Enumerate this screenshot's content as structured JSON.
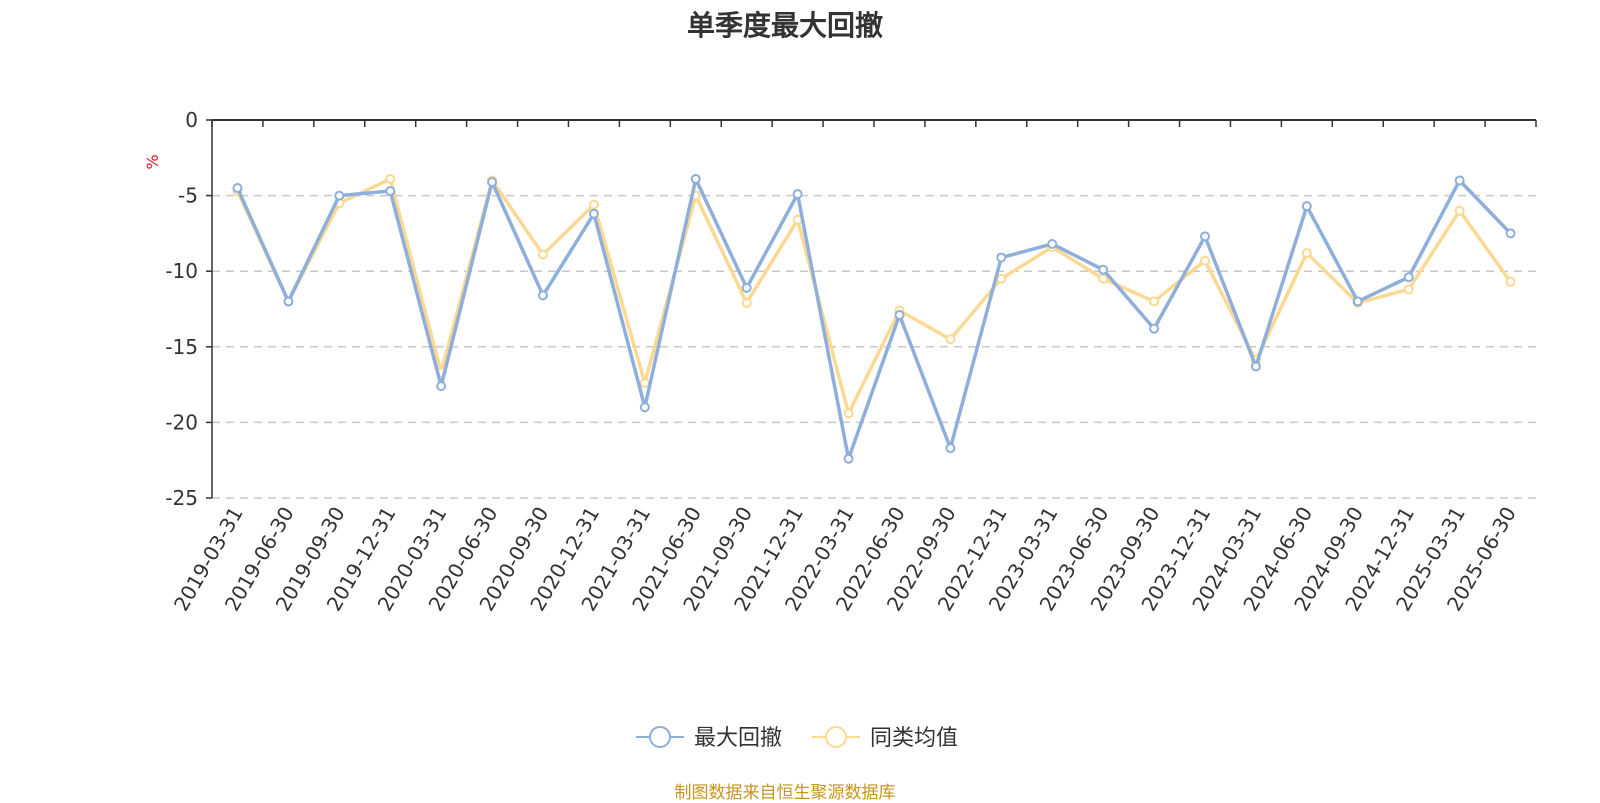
{
  "chart_data": {
    "type": "line",
    "title": "单季度最大回撤",
    "ylabel": "%",
    "ylim": [
      -25,
      0
    ],
    "yticks": [
      0,
      -5,
      -10,
      -15,
      -20,
      -25
    ],
    "grid": true,
    "legend_position": "bottom-center",
    "x": [
      "2019-03-31",
      "2019-06-30",
      "2019-09-30",
      "2019-12-31",
      "2020-03-31",
      "2020-06-30",
      "2020-09-30",
      "2020-12-31",
      "2021-03-31",
      "2021-06-30",
      "2021-09-30",
      "2021-12-31",
      "2022-03-31",
      "2022-06-30",
      "2022-09-30",
      "2022-12-31",
      "2023-03-31",
      "2023-06-30",
      "2023-09-30",
      "2023-12-31",
      "2024-03-31",
      "2024-06-30",
      "2024-09-30",
      "2024-12-31",
      "2025-03-31",
      "2025-06-30"
    ],
    "series": [
      {
        "name": "最大回撤",
        "color": "#8eaedb",
        "values": [
          -4.5,
          -12.0,
          -5.0,
          -4.7,
          -17.6,
          -4.1,
          -11.6,
          -6.2,
          -19.0,
          -3.9,
          -11.1,
          -4.9,
          -22.4,
          -12.9,
          -21.7,
          -9.1,
          -8.2,
          -9.9,
          -13.8,
          -7.7,
          -16.3,
          -5.7,
          -12.0,
          -10.4,
          -4.0,
          -7.5
        ]
      },
      {
        "name": "同类均值",
        "color": "#fcd993",
        "values": [
          -4.7,
          -12.0,
          -5.5,
          -3.9,
          -16.7,
          -4.0,
          -8.9,
          -5.6,
          -17.4,
          -5.0,
          -12.1,
          -6.6,
          -19.4,
          -12.6,
          -14.5,
          -10.5,
          -8.4,
          -10.5,
          -12.0,
          -9.3,
          -15.9,
          -8.8,
          -12.1,
          -11.2,
          -6.0,
          -10.7
        ]
      }
    ],
    "source_note": "制图数据来自恒生聚源数据库"
  }
}
